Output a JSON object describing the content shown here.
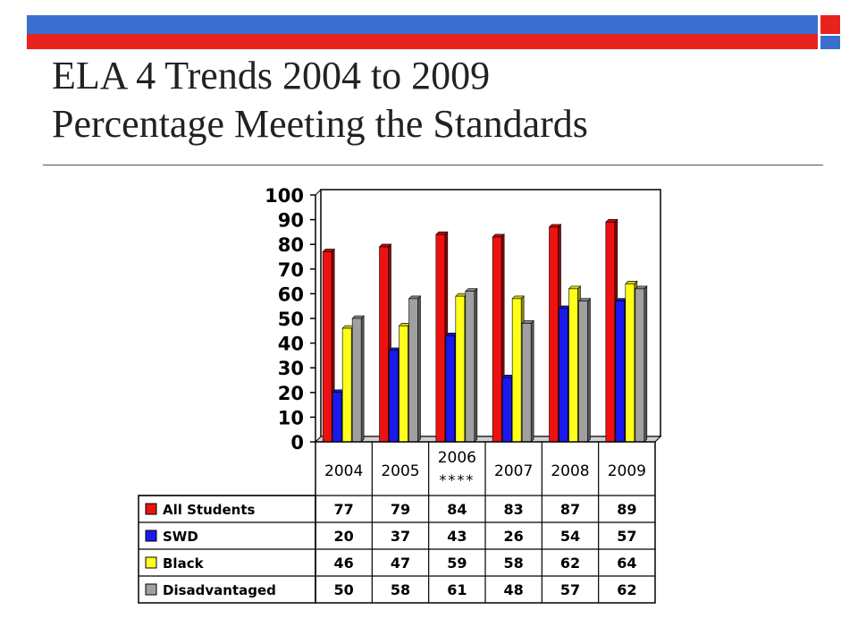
{
  "slide": {
    "title_line1": "ELA 4 Trends 2004 to 2009",
    "title_line2": "Percentage Meeting the Standards"
  },
  "colors": {
    "header_blue": "#3a6fcf",
    "header_red": "#e8231d"
  },
  "chart_data": {
    "type": "bar",
    "categories": [
      "2004",
      "2005",
      "2006",
      "2007",
      "2008",
      "2009"
    ],
    "category_notes": [
      "",
      "",
      "****",
      "",
      "",
      ""
    ],
    "series": [
      {
        "name": "All Students",
        "color": "#ee1111",
        "values": [
          77,
          79,
          84,
          83,
          87,
          89
        ]
      },
      {
        "name": "SWD",
        "color": "#1a1aee",
        "values": [
          20,
          37,
          43,
          26,
          54,
          57
        ]
      },
      {
        "name": "Black",
        "color": "#ffff1a",
        "values": [
          46,
          47,
          59,
          58,
          62,
          64
        ]
      },
      {
        "name": "Disadvantaged",
        "color": "#a0a0a0",
        "values": [
          50,
          58,
          61,
          48,
          57,
          62
        ]
      }
    ],
    "ylim": [
      0,
      100
    ],
    "yticks": [
      0,
      10,
      20,
      30,
      40,
      50,
      60,
      70,
      80,
      90,
      100
    ],
    "grid": false,
    "legend": "data-table"
  }
}
